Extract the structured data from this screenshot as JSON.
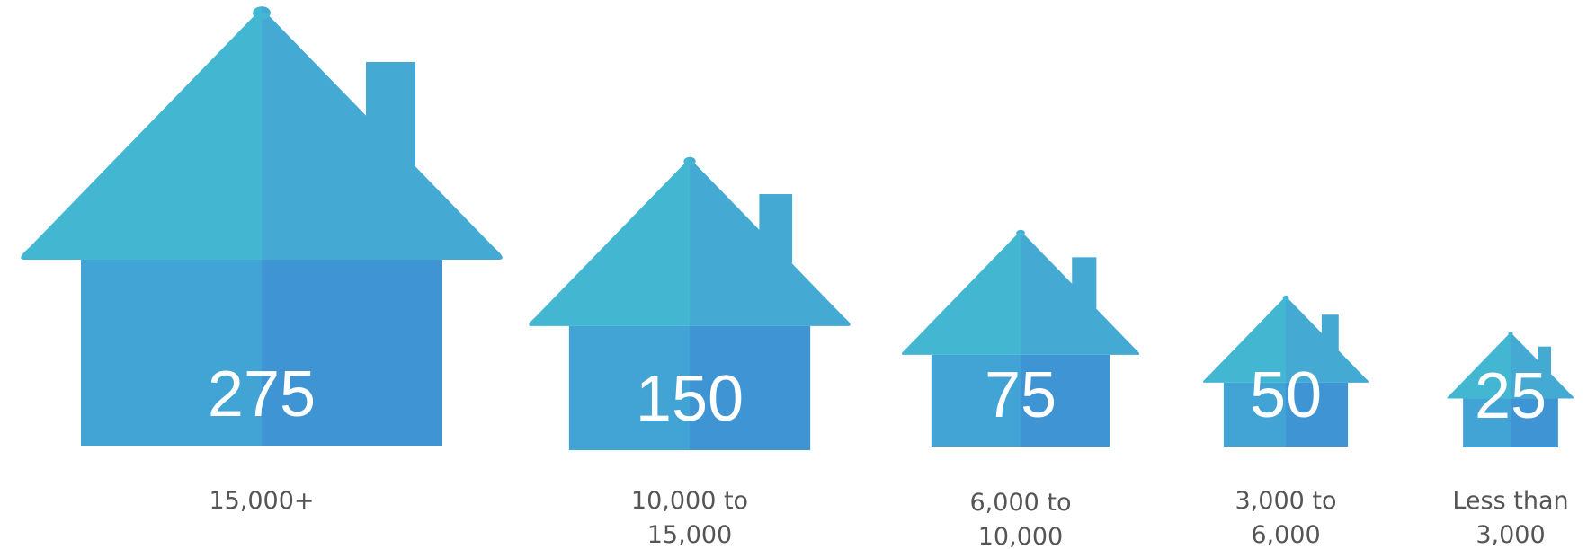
{
  "chart_data": {
    "type": "bar",
    "title": "",
    "xlabel": "",
    "ylabel": "",
    "categories": [
      "15,000+",
      "10,000 to 15,000",
      "6,000 to 10,000",
      "3,000 to 6,000",
      "Less than 3,000"
    ],
    "values": [
      275,
      150,
      75,
      50,
      25
    ],
    "labels": [
      "275",
      "150",
      "75",
      "50",
      "25"
    ],
    "category_lines": [
      [
        "15,000+"
      ],
      [
        "10,000 to",
        "15,000"
      ],
      [
        "6,000 to",
        "10,000"
      ],
      [
        "3,000 to",
        "6,000"
      ],
      [
        "Less than",
        "3,000"
      ]
    ]
  },
  "colors": {
    "roof_left": "#43b7d2",
    "roof_right": "#44aad3",
    "body_left": "#41a4d4",
    "body_right": "#3f95d4",
    "value_text": "#ffffff",
    "label_text": "#555555"
  },
  "marks": {
    "house": "house-icon",
    "chimney": "chimney-icon"
  }
}
